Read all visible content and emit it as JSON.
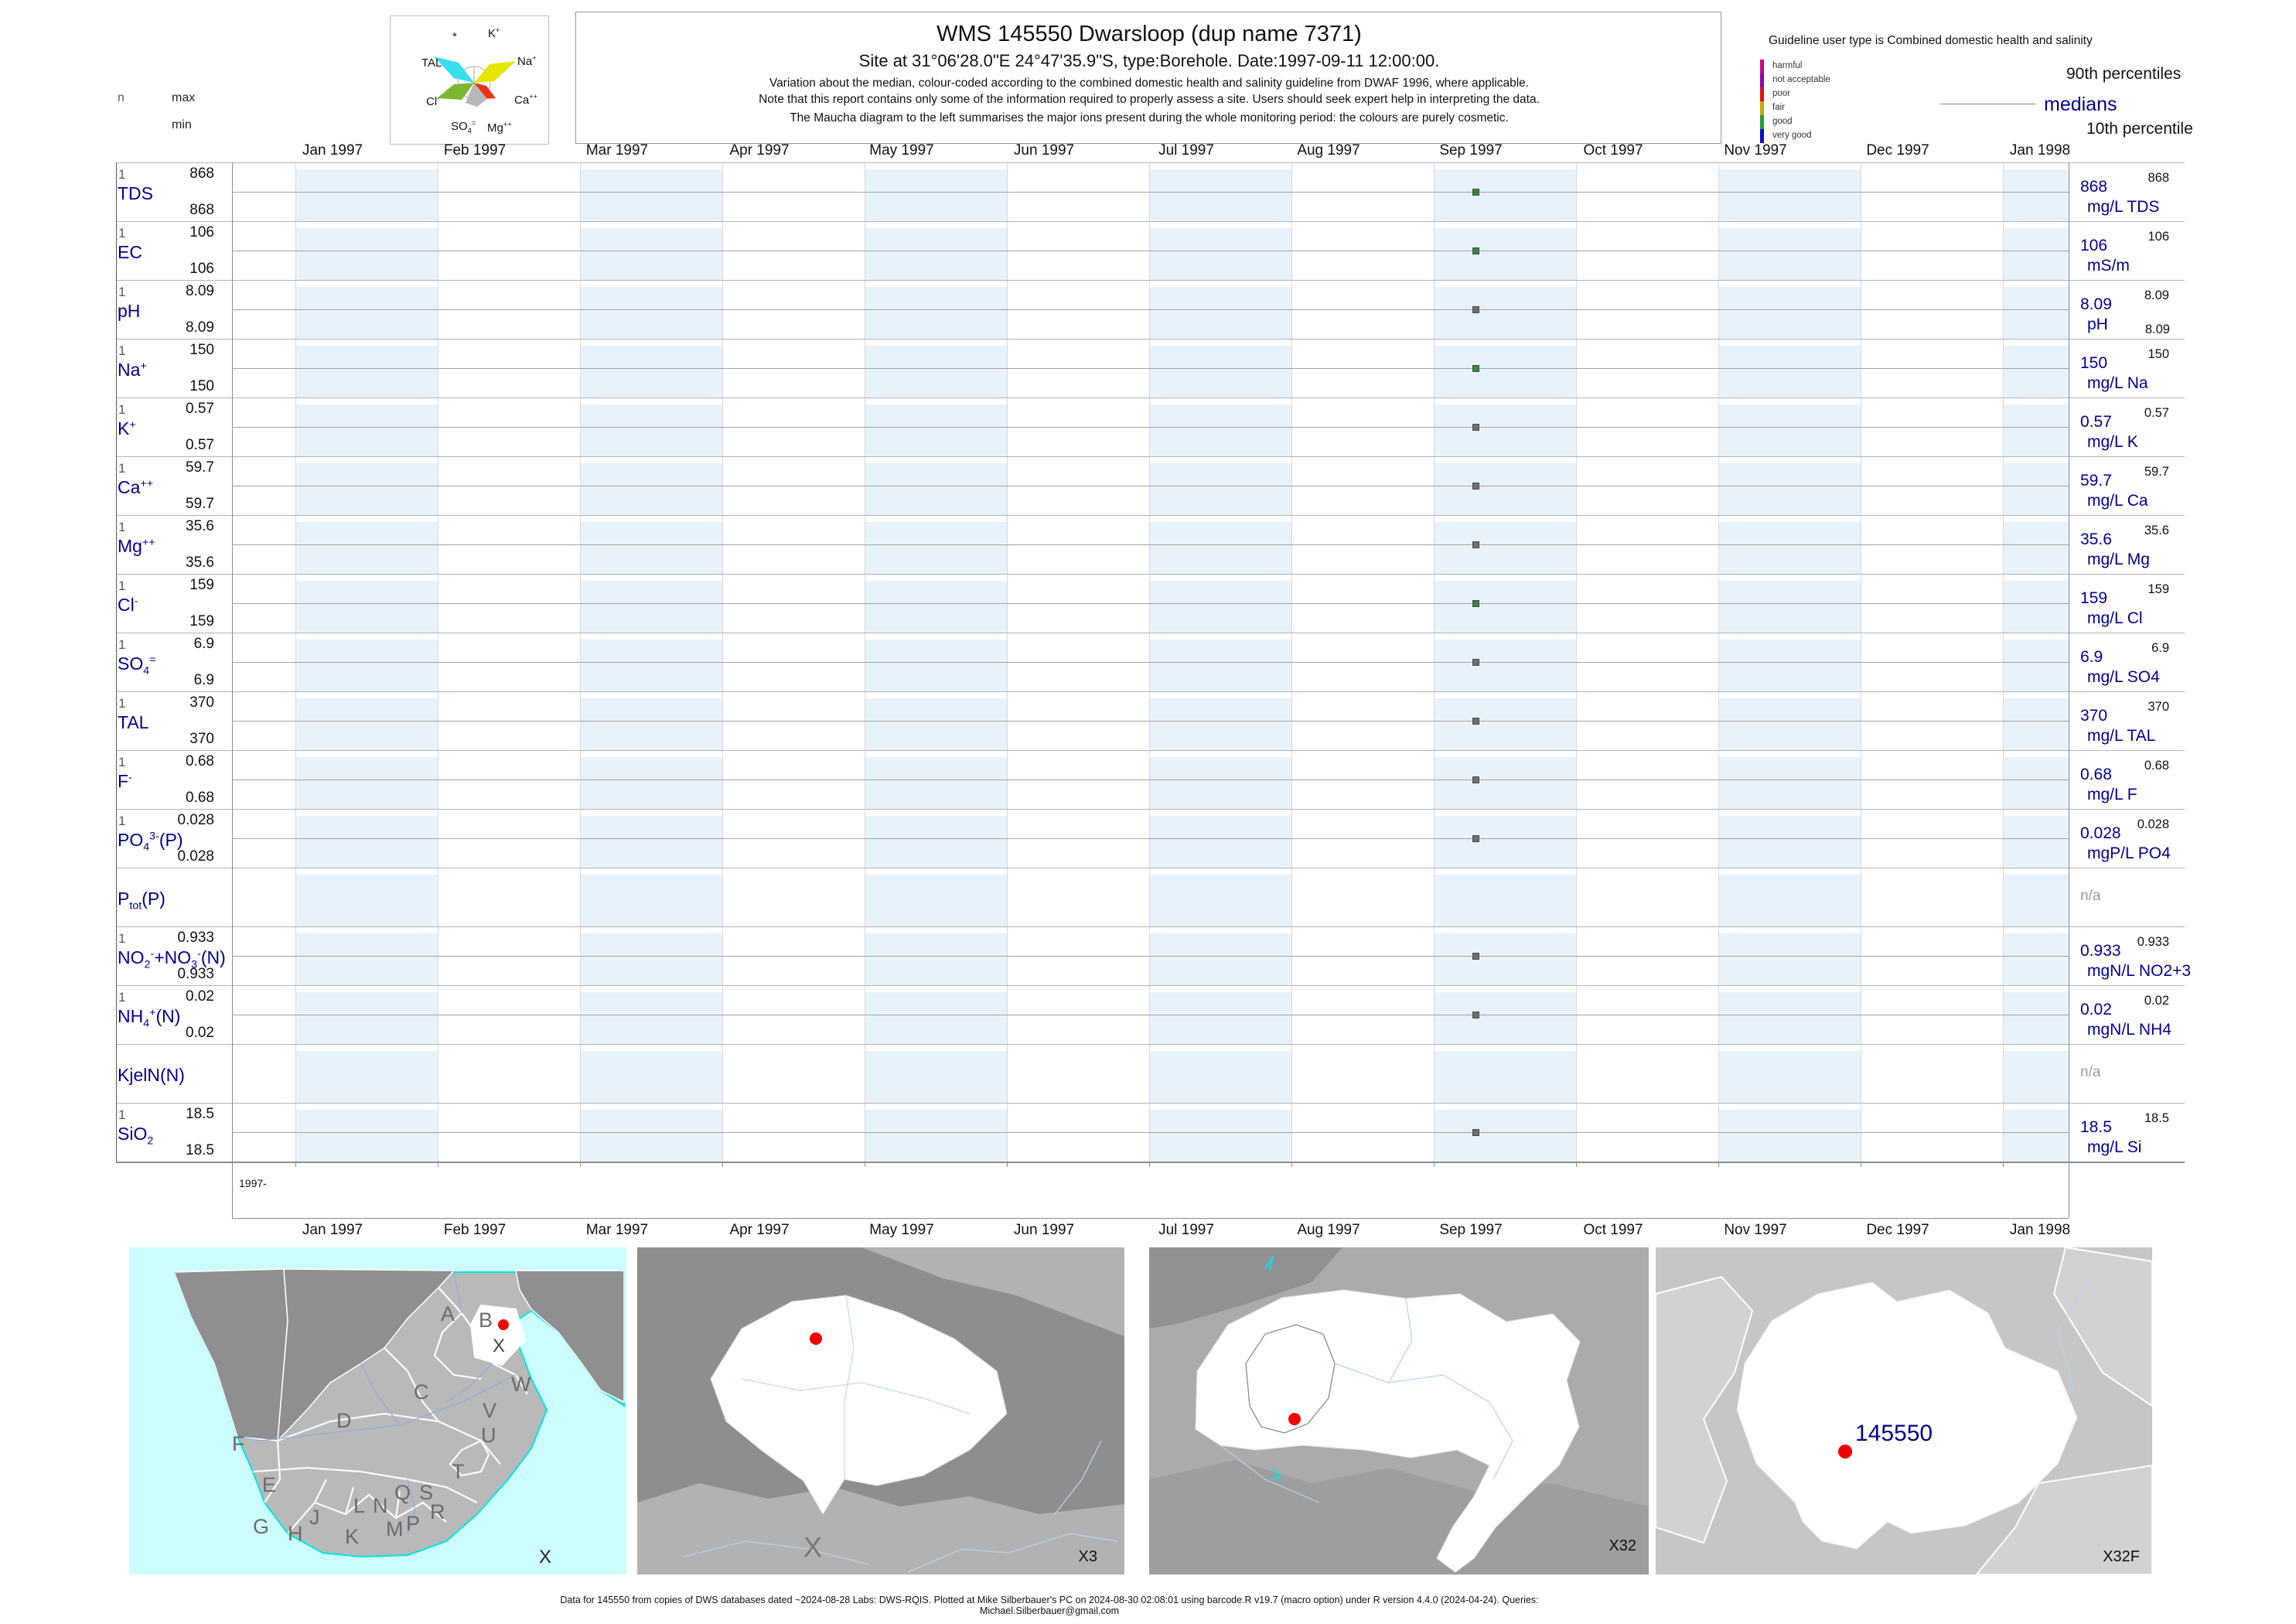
{
  "header": {
    "title": "WMS 145550  Dwarsloop (dup name 7371)",
    "subtitle": "Site at 31°06'28.0\"E 24°47'35.9\"S, type:Borehole. Date:1997-09-11 12:00:00.",
    "note1": "Variation about the median,  colour-coded according to the combined domestic health and salinity guideline from DWAF 1996, where applicable.",
    "note2": "Note that this report contains only some of the information required to properly assess a site. Users should seek expert help in interpreting the data.",
    "note3": "The Maucha diagram to the left summarises the major ions present during the whole monitoring period: the colours are purely cosmetic."
  },
  "stats_header": {
    "n": "n",
    "max": "max",
    "min": "min"
  },
  "guideline_legend": {
    "title": "Guideline user type is Combined domestic health and salinity",
    "classes": [
      {
        "label": "harmful",
        "color": "#CE0082"
      },
      {
        "label": "not acceptable",
        "color": "#8F00B0"
      },
      {
        "label": "poor",
        "color": "#E01010"
      },
      {
        "label": "fair",
        "color": "#C9A800"
      },
      {
        "label": "good",
        "color": "#1F9E32"
      },
      {
        "label": "very good",
        "color": "#0A0AD2"
      }
    ],
    "p90_label": "90th percentiles",
    "median_label": "medians",
    "p10_label": "10th percentile"
  },
  "maucha": {
    "labels_html": [
      "*",
      "K<sup>+</sup>",
      "TAL",
      "Na<sup>+</sup>",
      "Cl<sup>-</sup>",
      "Ca<sup>++</sup>",
      "SO<sub>4</sub><sup>=</sup>",
      "Mg<sup>++</sup>"
    ]
  },
  "axis": {
    "months": [
      "Jan 1997",
      "Feb 1997",
      "Mar 1997",
      "Apr 1997",
      "May 1997",
      "Jun 1997",
      "Jul 1997",
      "Aug 1997",
      "Sep 1997",
      "Oct 1997",
      "Nov 1997",
      "Dec 1997",
      "Jan 1998"
    ],
    "year_row_label": "1997-"
  },
  "rows": [
    {
      "name_html": "TDS",
      "n": "1",
      "max": "868",
      "min": "868",
      "p90": "868",
      "median": "868",
      "p10": null,
      "unit": "mg/L TDS",
      "na": null,
      "dot_color": "#2E8B3E",
      "status": "good"
    },
    {
      "name_html": "EC",
      "n": "1",
      "max": "106",
      "min": "106",
      "p90": "106",
      "median": "106",
      "p10": null,
      "unit": "mS/m",
      "na": null,
      "dot_color": "#2E8B3E",
      "status": "good"
    },
    {
      "name_html": "pH",
      "n": "1",
      "max": "8.09",
      "min": "8.09",
      "p90": "8.09",
      "median": "8.09",
      "p10": "8.09",
      "unit": "pH",
      "na": null,
      "dot_color": "#6F6F6F",
      "status": "unrated"
    },
    {
      "name_html": "Na<sup>+</sup>",
      "n": "1",
      "max": "150",
      "min": "150",
      "p90": "150",
      "median": "150",
      "p10": null,
      "unit": "mg/L Na",
      "na": null,
      "dot_color": "#2E8B3E",
      "status": "good"
    },
    {
      "name_html": "K<sup>+</sup>",
      "n": "1",
      "max": "0.57",
      "min": "0.57",
      "p90": "0.57",
      "median": "0.57",
      "p10": null,
      "unit": "mg/L K",
      "na": null,
      "dot_color": "#6F6F6F",
      "status": "unrated"
    },
    {
      "name_html": "Ca<sup>++</sup>",
      "n": "1",
      "max": "59.7",
      "min": "59.7",
      "p90": "59.7",
      "median": "59.7",
      "p10": null,
      "unit": "mg/L Ca",
      "na": null,
      "dot_color": "#6F6F6F",
      "status": "unrated"
    },
    {
      "name_html": "Mg<sup>++</sup>",
      "n": "1",
      "max": "35.6",
      "min": "35.6",
      "p90": "35.6",
      "median": "35.6",
      "p10": null,
      "unit": "mg/L Mg",
      "na": null,
      "dot_color": "#6F6F6F",
      "status": "unrated"
    },
    {
      "name_html": "Cl<sup>-</sup>",
      "n": "1",
      "max": "159",
      "min": "159",
      "p90": "159",
      "median": "159",
      "p10": null,
      "unit": "mg/L Cl",
      "na": null,
      "dot_color": "#2E8B3E",
      "status": "good"
    },
    {
      "name_html": "SO<sub>4</sub><sup>=</sup>",
      "n": "1",
      "max": "6.9",
      "min": "6.9",
      "p90": "6.9",
      "median": "6.9",
      "p10": null,
      "unit": "mg/L SO4",
      "na": null,
      "dot_color": "#6F6F6F",
      "status": "unrated"
    },
    {
      "name_html": "TAL",
      "n": "1",
      "max": "370",
      "min": "370",
      "p90": "370",
      "median": "370",
      "p10": null,
      "unit": "mg/L TAL",
      "na": null,
      "dot_color": "#6F6F6F",
      "status": "unrated"
    },
    {
      "name_html": "F<sup>-</sup>",
      "n": "1",
      "max": "0.68",
      "min": "0.68",
      "p90": "0.68",
      "median": "0.68",
      "p10": null,
      "unit": "mg/L F",
      "na": null,
      "dot_color": "#6F6F6F",
      "status": "unrated"
    },
    {
      "name_html": "PO<sub>4</sub><sup>3-</sup>(P)",
      "n": "1",
      "max": "0.028",
      "min": "0.028",
      "p90": "0.028",
      "median": "0.028",
      "p10": null,
      "unit": "mgP/L PO4",
      "na": null,
      "dot_color": "#6F6F6F",
      "status": "unrated"
    },
    {
      "name_html": "P<sub>tot</sub>(P)",
      "n": null,
      "max": null,
      "min": null,
      "p90": null,
      "median": null,
      "p10": null,
      "unit": null,
      "na": "n/a",
      "dot_color": null,
      "status": "no-data"
    },
    {
      "name_html": "NO<sub>2</sub><sup>-</sup>+NO<sub>3</sub><sup>-</sup>(N)",
      "n": "1",
      "max": "0.933",
      "min": "0.933",
      "p90": "0.933",
      "median": "0.933",
      "p10": null,
      "unit": "mgN/L NO2+3",
      "na": null,
      "dot_color": "#6F6F6F",
      "status": "unrated"
    },
    {
      "name_html": "NH<sub>4</sub><sup>+</sup>(N)",
      "n": "1",
      "max": "0.02",
      "min": "0.02",
      "p90": "0.02",
      "median": "0.02",
      "p10": null,
      "unit": "mgN/L NH4",
      "na": null,
      "dot_color": "#6F6F6F",
      "status": "unrated"
    },
    {
      "name_html": "KjelN(N)",
      "n": null,
      "max": null,
      "min": null,
      "p90": null,
      "median": null,
      "p10": null,
      "unit": null,
      "na": "n/a",
      "dot_color": null,
      "status": "no-data"
    },
    {
      "name_html": "SiO<sub>2</sub>",
      "n": "1",
      "max": "18.5",
      "min": "18.5",
      "p90": "18.5",
      "median": "18.5",
      "p10": null,
      "unit": "mg/L Si",
      "na": null,
      "dot_color": "#6F6F6F",
      "status": "unrated"
    }
  ],
  "maps": {
    "map1": {
      "region_letters": [
        "A",
        "B",
        "C",
        "D",
        "E",
        "F",
        "G",
        "H",
        "J",
        "K",
        "L",
        "M",
        "N",
        "P",
        "Q",
        "R",
        "S",
        "T",
        "U",
        "V",
        "W"
      ],
      "site_label": "X",
      "corner_label": "X"
    },
    "map2": {
      "center_label": "X",
      "corner_label": "X3"
    },
    "map3": {
      "corner_label": "X32"
    },
    "map4": {
      "site_label": "145550",
      "corner_label": "X32F"
    }
  },
  "footer": "Data for 145550 from copies of DWS databases dated ~2024-08-28 Labs: DWS-RQIS. Plotted at Mike Silberbauer's PC on 2024-08-30 02:08:01 using barcode.R v19.7 (macro option) under R version 4.4.0 (2024-04-24). Queries: Michael.Silberbauer@gmail.com",
  "chart_data": {
    "type": "scatter",
    "title": "WMS 145550 Dwarsloop (dup name 7371)",
    "x_axis_months": [
      "Jan 1997",
      "Feb 1997",
      "Mar 1997",
      "Apr 1997",
      "May 1997",
      "Jun 1997",
      "Jul 1997",
      "Aug 1997",
      "Sep 1997",
      "Oct 1997",
      "Nov 1997",
      "Dec 1997",
      "Jan 1998"
    ],
    "sample_date": "1997-09-11",
    "legend_position": "top-right",
    "grid": "month columns, one horizontal median line per parameter row",
    "series": [
      {
        "parameter": "TDS",
        "unit": "mg/L TDS",
        "n": 1,
        "value": 868,
        "max": 868,
        "min": 868,
        "median": 868,
        "p90": 868,
        "status": "good"
      },
      {
        "parameter": "EC",
        "unit": "mS/m",
        "n": 1,
        "value": 106,
        "max": 106,
        "min": 106,
        "median": 106,
        "p90": 106,
        "status": "good"
      },
      {
        "parameter": "pH",
        "unit": "pH",
        "n": 1,
        "value": 8.09,
        "max": 8.09,
        "min": 8.09,
        "median": 8.09,
        "p90": 8.09,
        "p10": 8.09,
        "status": "unrated"
      },
      {
        "parameter": "Na+",
        "unit": "mg/L Na",
        "n": 1,
        "value": 150,
        "max": 150,
        "min": 150,
        "median": 150,
        "p90": 150,
        "status": "good"
      },
      {
        "parameter": "K+",
        "unit": "mg/L K",
        "n": 1,
        "value": 0.57,
        "max": 0.57,
        "min": 0.57,
        "median": 0.57,
        "p90": 0.57,
        "status": "unrated"
      },
      {
        "parameter": "Ca++",
        "unit": "mg/L Ca",
        "n": 1,
        "value": 59.7,
        "max": 59.7,
        "min": 59.7,
        "median": 59.7,
        "p90": 59.7,
        "status": "unrated"
      },
      {
        "parameter": "Mg++",
        "unit": "mg/L Mg",
        "n": 1,
        "value": 35.6,
        "max": 35.6,
        "min": 35.6,
        "median": 35.6,
        "p90": 35.6,
        "status": "unrated"
      },
      {
        "parameter": "Cl-",
        "unit": "mg/L Cl",
        "n": 1,
        "value": 159,
        "max": 159,
        "min": 159,
        "median": 159,
        "p90": 159,
        "status": "good"
      },
      {
        "parameter": "SO4=",
        "unit": "mg/L SO4",
        "n": 1,
        "value": 6.9,
        "max": 6.9,
        "min": 6.9,
        "median": 6.9,
        "p90": 6.9,
        "status": "unrated"
      },
      {
        "parameter": "TAL",
        "unit": "mg/L TAL",
        "n": 1,
        "value": 370,
        "max": 370,
        "min": 370,
        "median": 370,
        "p90": 370,
        "status": "unrated"
      },
      {
        "parameter": "F-",
        "unit": "mg/L F",
        "n": 1,
        "value": 0.68,
        "max": 0.68,
        "min": 0.68,
        "median": 0.68,
        "p90": 0.68,
        "status": "unrated"
      },
      {
        "parameter": "PO4 3-(P)",
        "unit": "mgP/L PO4",
        "n": 1,
        "value": 0.028,
        "max": 0.028,
        "min": 0.028,
        "median": 0.028,
        "p90": 0.028,
        "status": "unrated"
      },
      {
        "parameter": "Ptot(P)",
        "unit": "n/a",
        "n": 0,
        "value": null,
        "status": "no-data"
      },
      {
        "parameter": "NO2-+NO3-(N)",
        "unit": "mgN/L NO2+3",
        "n": 1,
        "value": 0.933,
        "max": 0.933,
        "min": 0.933,
        "median": 0.933,
        "p90": 0.933,
        "status": "unrated"
      },
      {
        "parameter": "NH4+(N)",
        "unit": "mgN/L NH4",
        "n": 1,
        "value": 0.02,
        "max": 0.02,
        "min": 0.02,
        "median": 0.02,
        "p90": 0.02,
        "status": "unrated"
      },
      {
        "parameter": "KjelN(N)",
        "unit": "n/a",
        "n": 0,
        "value": null,
        "status": "no-data"
      },
      {
        "parameter": "SiO2",
        "unit": "mg/L Si",
        "n": 1,
        "value": 18.5,
        "max": 18.5,
        "min": 18.5,
        "median": 18.5,
        "p90": 18.5,
        "status": "unrated"
      }
    ]
  }
}
